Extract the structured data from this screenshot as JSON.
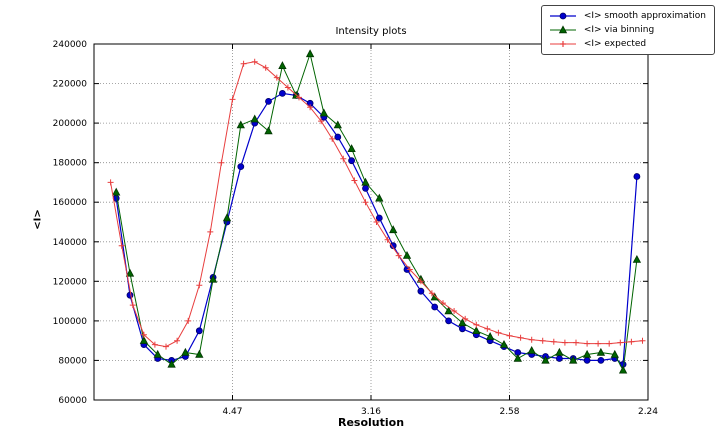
{
  "title": "Intensity plots",
  "chart_data": {
    "type": "line",
    "title": "Intensity plots",
    "xlabel": "Resolution",
    "ylabel": "<I>",
    "grid": true,
    "legend_position": "upper right, outside top of axes",
    "xlim": [
      0,
      0.2
    ],
    "ylim": [
      60000,
      240000
    ],
    "x_ticks": [
      {
        "value": 0.05,
        "label": "4.47"
      },
      {
        "value": 0.1,
        "label": "3.16"
      },
      {
        "value": 0.15,
        "label": "2.58"
      },
      {
        "value": 0.2,
        "label": "2.24"
      }
    ],
    "y_ticks": [
      {
        "value": 60000,
        "label": "60000"
      },
      {
        "value": 80000,
        "label": "80000"
      },
      {
        "value": 100000,
        "label": "100000"
      },
      {
        "value": 120000,
        "label": "120000"
      },
      {
        "value": 140000,
        "label": "140000"
      },
      {
        "value": 160000,
        "label": "160000"
      },
      {
        "value": 180000,
        "label": "180000"
      },
      {
        "value": 200000,
        "label": "200000"
      },
      {
        "value": 220000,
        "label": "220000"
      },
      {
        "value": 240000,
        "label": "240000"
      }
    ],
    "series": [
      {
        "id": "smooth",
        "name": "<I> smooth approximation",
        "marker": "circle",
        "color": "#0000cc",
        "edge": "#000066",
        "line_width": 1.2,
        "x": [
          0.008,
          0.013,
          0.018,
          0.023,
          0.028,
          0.033,
          0.038,
          0.043,
          0.048,
          0.053,
          0.058,
          0.063,
          0.068,
          0.073,
          0.078,
          0.083,
          0.088,
          0.093,
          0.098,
          0.103,
          0.108,
          0.113,
          0.118,
          0.123,
          0.128,
          0.133,
          0.138,
          0.143,
          0.148,
          0.153,
          0.158,
          0.163,
          0.168,
          0.173,
          0.178,
          0.183,
          0.188,
          0.191,
          0.196
        ],
        "y": [
          162000,
          113000,
          88000,
          81000,
          80000,
          82000,
          95000,
          122000,
          150000,
          178000,
          200000,
          211000,
          215000,
          214000,
          210000,
          203000,
          193000,
          181000,
          167000,
          152000,
          138000,
          126000,
          115000,
          107000,
          100000,
          96000,
          93000,
          90000,
          87000,
          84000,
          83000,
          82000,
          81000,
          81000,
          80000,
          80000,
          81000,
          78000,
          173000
        ]
      },
      {
        "id": "binning",
        "name": "<I> via binning",
        "marker": "triangle",
        "color": "#006400",
        "edge": "#013301",
        "line_width": 1,
        "x": [
          0.008,
          0.013,
          0.018,
          0.023,
          0.028,
          0.033,
          0.038,
          0.043,
          0.048,
          0.053,
          0.058,
          0.063,
          0.068,
          0.073,
          0.078,
          0.083,
          0.088,
          0.093,
          0.098,
          0.103,
          0.108,
          0.113,
          0.118,
          0.123,
          0.128,
          0.133,
          0.138,
          0.143,
          0.148,
          0.153,
          0.158,
          0.163,
          0.168,
          0.173,
          0.178,
          0.183,
          0.188,
          0.191,
          0.196
        ],
        "y": [
          165000,
          124000,
          90000,
          83000,
          78000,
          84000,
          83000,
          121000,
          152000,
          199000,
          202000,
          196000,
          229000,
          214000,
          235000,
          205000,
          199000,
          187000,
          170000,
          162000,
          146000,
          133000,
          121000,
          112000,
          105000,
          99000,
          95000,
          92000,
          88000,
          81000,
          85000,
          80000,
          84000,
          80000,
          83000,
          84000,
          83000,
          75000,
          131000
        ]
      },
      {
        "id": "expected",
        "name": "<I> expected",
        "marker": "plus",
        "color": "#e83e3e",
        "edge": "#e83e3e",
        "line_width": 1,
        "x": [
          0.006,
          0.01,
          0.014,
          0.018,
          0.022,
          0.026,
          0.03,
          0.034,
          0.038,
          0.042,
          0.046,
          0.05,
          0.054,
          0.058,
          0.062,
          0.066,
          0.07,
          0.074,
          0.078,
          0.082,
          0.086,
          0.09,
          0.094,
          0.098,
          0.102,
          0.106,
          0.11,
          0.114,
          0.118,
          0.122,
          0.126,
          0.13,
          0.134,
          0.138,
          0.142,
          0.146,
          0.15,
          0.154,
          0.158,
          0.162,
          0.166,
          0.17,
          0.174,
          0.178,
          0.182,
          0.186,
          0.19,
          0.194,
          0.198
        ],
        "y": [
          170000,
          138000,
          108000,
          93000,
          88000,
          87000,
          90000,
          100000,
          118000,
          145000,
          180000,
          212000,
          230000,
          231000,
          228000,
          223000,
          218000,
          213000,
          208000,
          201000,
          192000,
          182000,
          171000,
          160000,
          150000,
          141000,
          133000,
          126000,
          120000,
          114000,
          109000,
          105000,
          101000,
          98000,
          96000,
          94000,
          92500,
          91500,
          90500,
          90000,
          89500,
          89000,
          89000,
          88500,
          88500,
          88500,
          89000,
          89500,
          90000
        ]
      }
    ]
  }
}
